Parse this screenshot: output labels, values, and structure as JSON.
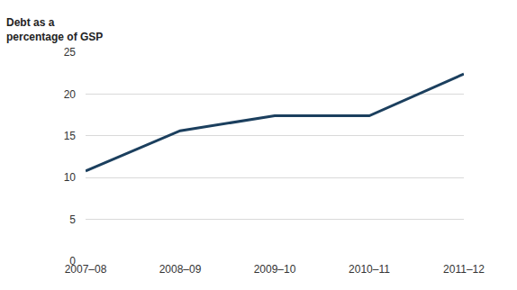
{
  "chart_data": {
    "type": "line",
    "ylabel": "Debt as a percentage of GSP",
    "categories": [
      "2007–08",
      "2008–09",
      "2009–10",
      "2010–11",
      "2011–12"
    ],
    "values": [
      10.8,
      15.6,
      17.4,
      17.4,
      22.4
    ],
    "color": "#1b3f5e",
    "ylim": [
      0,
      25
    ],
    "yticks": [
      0,
      5,
      10,
      15,
      20,
      25
    ],
    "grid": true
  }
}
